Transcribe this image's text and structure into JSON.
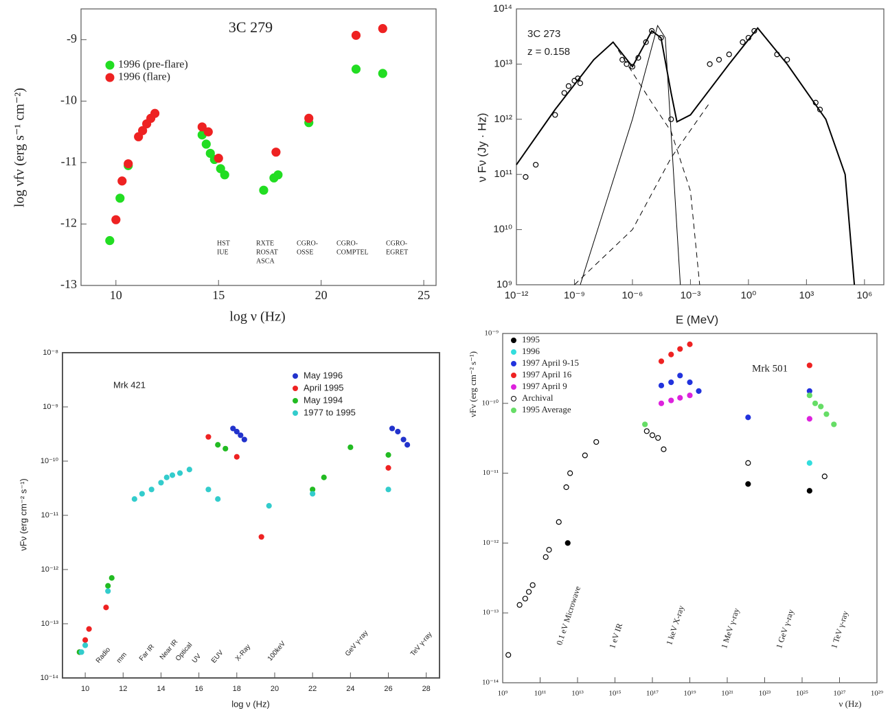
{
  "chart_data": [
    {
      "type": "scatter",
      "title": "3C 279",
      "xlabel": "log ν (Hz)",
      "ylabel": "log νfν (erg s⁻¹ cm⁻²)",
      "xlim": [
        8.3,
        25.6
      ],
      "xticks": [
        10,
        15,
        20,
        25
      ],
      "ylim": [
        -13,
        -8.5
      ],
      "yticks": [
        -13,
        -12,
        -11,
        -10,
        -9
      ],
      "xlog": false,
      "ylog": false,
      "legend": "upper left",
      "annotations": [
        [
          "HST",
          "IUE"
        ],
        [
          "RXTE",
          "ROSAT",
          "ASCA"
        ],
        [
          "CGRO-",
          "OSSE"
        ],
        [
          "CGRO-",
          "COMPTEL"
        ],
        [
          "CGRO-",
          "EGRET"
        ]
      ],
      "series": [
        {
          "name": "1996 (pre-flare)",
          "color": "#22dd22",
          "marker": "filled",
          "x": [
            9.7,
            10.2,
            10.6,
            14.2,
            14.4,
            14.6,
            14.8,
            15.1,
            15.3,
            17.2,
            17.7,
            17.9,
            19.4,
            21.7,
            23.0
          ],
          "values": [
            -12.27,
            -11.58,
            -11.05,
            -10.55,
            -10.7,
            -10.85,
            -10.95,
            -11.1,
            -11.2,
            -11.45,
            -11.25,
            -11.2,
            -10.35,
            -9.48,
            -9.55
          ]
        },
        {
          "name": "1996 (flare)",
          "color": "#ee2222",
          "marker": "filled",
          "x": [
            10.0,
            10.3,
            10.6,
            11.1,
            11.3,
            11.5,
            11.7,
            11.9,
            14.2,
            14.5,
            15.0,
            17.8,
            19.4,
            21.7,
            23.0
          ],
          "values": [
            -11.93,
            -11.3,
            -11.02,
            -10.58,
            -10.48,
            -10.37,
            -10.28,
            -10.2,
            -10.42,
            -10.5,
            -10.93,
            -10.83,
            -10.28,
            -8.93,
            -8.82
          ]
        }
      ]
    },
    {
      "type": "scatter",
      "title": "3C 273",
      "subtitle": "z = 0.158",
      "title_color": "#e0407a",
      "xlabel": "E (MeV)",
      "ylabel": "ν Fν (Jy · Hz)",
      "xlim": [
        1e-12,
        10000000.0
      ],
      "xlog": true,
      "ylog": true,
      "xticks": [
        {
          "value": 1e-12,
          "label": "10⁻¹²"
        },
        {
          "value": 1e-09,
          "label": "10⁻⁹"
        },
        {
          "value": 1e-06,
          "label": "10⁻⁶"
        },
        {
          "value": 0.001,
          "label": "10⁻³"
        },
        {
          "value": 1,
          "label": "10⁰"
        },
        {
          "value": 1000,
          "label": "10³"
        },
        {
          "value": 1000000,
          "label": "10⁶"
        }
      ],
      "ylim": [
        1000000000.0,
        100000000000000.0
      ],
      "yticks": [
        {
          "value": 1000000000.0,
          "label": "10⁹"
        },
        {
          "value": 10000000000.0,
          "label": "10¹⁰"
        },
        {
          "value": 100000000000.0,
          "label": "10¹¹"
        },
        {
          "value": 1000000000000.0,
          "label": "10¹²"
        },
        {
          "value": 10000000000000.0,
          "label": "10¹³"
        },
        {
          "value": 100000000000000.0,
          "label": "10¹⁴"
        }
      ],
      "series": [
        {
          "color": "#000000",
          "marker": "open",
          "x": [
            3e-12,
            1e-11,
            1e-10,
            3e-10,
            5e-10,
            1e-09,
            1.5e-09,
            2e-09,
            3e-07,
            5e-07,
            1e-06,
            2e-06,
            5e-06,
            1e-05,
            3e-05,
            0.0001,
            0.01,
            0.03,
            0.1,
            0.5,
            1,
            2,
            30,
            100,
            3000,
            5000
          ],
          "values": [
            90000000000.0,
            150000000000.0,
            1200000000000.0,
            3000000000000.0,
            4000000000000.0,
            5000000000000.0,
            5500000000000.0,
            4500000000000.0,
            12000000000000.0,
            10000000000000.0,
            9000000000000.0,
            13000000000000.0,
            25000000000000.0,
            40000000000000.0,
            30000000000000.0,
            1000000000000.0,
            10000000000000.0,
            12000000000000.0,
            15000000000000.0,
            25000000000000.0,
            30000000000000.0,
            40000000000000.0,
            15000000000000.0,
            12000000000000.0,
            2000000000000.0,
            1500000000000.0
          ]
        },
        {
          "color": "#000000",
          "line": true,
          "width": 2,
          "x": [
            1e-12,
            1e-10,
            1e-08,
            1e-07,
            1e-06,
            1e-05,
            3e-05,
            0.0001,
            0.0002,
            0.001,
            0.1,
            3,
            100,
            10000,
            100000,
            300000
          ],
          "values": [
            150000000000.0,
            1500000000000.0,
            12000000000000.0,
            25000000000000.0,
            9000000000000.0,
            40000000000000.0,
            30000000000000.0,
            3000000000000.0,
            900000000000.0,
            1200000000000.0,
            10000000000000.0,
            45000000000000.0,
            10000000000000.0,
            1000000000000.0,
            100000000000.0,
            1000000000.0
          ]
        },
        {
          "color": "#000000",
          "line": true,
          "width": 1,
          "x": [
            2e-09,
            1e-06,
            2e-05,
            5e-05,
            0.0003
          ],
          "values": [
            1000000000.0,
            1000000000000.0,
            50000000000000.0,
            30000000000000.0,
            1000000000.0
          ]
        },
        {
          "color": "#000000",
          "line": true,
          "dash": true,
          "width": 1,
          "x": [
            1e-07,
            1e-05,
            0.0001,
            0.001,
            0.003
          ],
          "values": [
            25000000000000.0,
            2000000000000.0,
            600000000000.0,
            50000000000.0,
            1000000000.0
          ]
        },
        {
          "color": "#000000",
          "line": true,
          "dash": true,
          "width": 1,
          "x": [
            1e-09,
            1e-06,
            0.0001,
            0.01
          ],
          "values": [
            1000000000.0,
            10000000000.0,
            200000000000.0,
            2000000000000.0
          ]
        }
      ]
    },
    {
      "type": "scatter",
      "title": "Mrk 421",
      "xlabel": "log ν (Hz)",
      "ylabel": "νFν (erg cm⁻² s⁻¹)",
      "xlim": [
        8.8,
        28.7
      ],
      "xticks": [
        10,
        12,
        14,
        16,
        18,
        20,
        22,
        24,
        26,
        28
      ],
      "xlog": false,
      "ylog": true,
      "ylim": [
        1e-14,
        1e-08
      ],
      "yticks": [
        {
          "value": 1e-14,
          "label": "10⁻¹⁴"
        },
        {
          "value": 1e-13,
          "label": "10⁻¹³"
        },
        {
          "value": 1e-12,
          "label": "10⁻¹²"
        },
        {
          "value": 1e-11,
          "label": "10⁻¹¹"
        },
        {
          "value": 1e-10,
          "label": "10⁻¹⁰"
        },
        {
          "value": 1e-09,
          "label": "10⁻⁹"
        },
        {
          "value": 1e-08,
          "label": "10⁻⁸"
        }
      ],
      "legend": "upper right",
      "annotations": [
        "Radio",
        "mm",
        "Far IR",
        "Near IR",
        "Optical",
        "UV",
        "EUV",
        "X-Ray",
        "100keV",
        "GeV γ-ray",
        "TeV γ-ray"
      ],
      "series": [
        {
          "name": "May 1996",
          "color": "#2233cc",
          "marker": "filled",
          "x": [
            17.8,
            18.0,
            18.2,
            18.4,
            26.2,
            26.5,
            26.8,
            27.0
          ],
          "values": [
            4e-10,
            3.5e-10,
            3e-10,
            2.5e-10,
            4e-10,
            3.5e-10,
            2.5e-10,
            2e-10
          ]
        },
        {
          "name": "April 1995",
          "color": "#ee2222",
          "marker": "filled",
          "x": [
            9.7,
            10.0,
            10.2,
            11.1,
            16.5,
            18.0,
            19.3,
            26.0
          ],
          "values": [
            3e-14,
            5e-14,
            8e-14,
            2e-13,
            2.8e-10,
            1.2e-10,
            4e-12,
            7.5e-11
          ]
        },
        {
          "name": "May 1994",
          "color": "#22bb22",
          "marker": "filled",
          "x": [
            9.7,
            11.2,
            11.4,
            17.0,
            17.4,
            22.0,
            22.6,
            24.0,
            26.0
          ],
          "values": [
            3e-14,
            5e-13,
            7e-13,
            2e-10,
            1.7e-10,
            3e-11,
            5e-11,
            1.8e-10,
            1.3e-10
          ]
        },
        {
          "name": "1977 to 1995",
          "color": "#33cccc",
          "marker": "filled",
          "x": [
            9.8,
            10.0,
            11.2,
            12.6,
            13.0,
            13.5,
            14.0,
            14.3,
            14.6,
            15.0,
            15.5,
            16.5,
            17.0,
            19.7,
            22.0,
            26.0
          ],
          "values": [
            3e-14,
            4e-14,
            4e-13,
            2e-11,
            2.5e-11,
            3e-11,
            4e-11,
            5e-11,
            5.5e-11,
            6e-11,
            7e-11,
            3e-11,
            2e-11,
            1.5e-11,
            2.5e-11,
            3e-11
          ]
        }
      ]
    },
    {
      "type": "scatter",
      "title": "Mrk 501",
      "xlabel": "ν (Hz)",
      "ylabel": "νFν (erg cm⁻² s⁻¹)",
      "xlim": [
        1000000000.0,
        1e+29
      ],
      "xlog": true,
      "ylog": true,
      "xticks": [
        {
          "value": 1000000000.0,
          "label": "10⁹"
        },
        {
          "value": 100000000000.0,
          "label": "10¹¹"
        },
        {
          "value": 10000000000000.0,
          "label": "10¹³"
        },
        {
          "value": 1000000000000000.0,
          "label": "10¹⁵"
        },
        {
          "value": 1e+17,
          "label": "10¹⁷"
        },
        {
          "value": 1e+19,
          "label": "10¹⁹"
        },
        {
          "value": 1e+21,
          "label": "10²¹"
        },
        {
          "value": 1e+23,
          "label": "10²³"
        },
        {
          "value": 1e+25,
          "label": "10²⁵"
        },
        {
          "value": 1e+27,
          "label": "10²⁷"
        },
        {
          "value": 1e+29,
          "label": "10²⁹"
        }
      ],
      "ylim": [
        1e-14,
        1e-09
      ],
      "yticks": [
        {
          "value": 1e-14,
          "label": "10⁻¹⁴"
        },
        {
          "value": 1e-13,
          "label": "10⁻¹³"
        },
        {
          "value": 1e-12,
          "label": "10⁻¹²"
        },
        {
          "value": 1e-11,
          "label": "10⁻¹¹"
        },
        {
          "value": 1e-10,
          "label": "10⁻¹⁰"
        },
        {
          "value": 1e-09,
          "label": "10⁻⁹"
        }
      ],
      "legend": "upper left",
      "legend_text_color": "series",
      "annotation_color": "#dd22dd",
      "annotations": [
        "0.1 eV Microwave",
        "1 eV IR",
        "1 keV X-ray",
        "1 MeV γ-ray",
        "1 GeV γ-ray",
        "1 TeV γ-ray"
      ],
      "series": [
        {
          "name": "1995",
          "color": "#000000",
          "marker": "filled",
          "x": [
            3000000000000.0,
            1.3e+22,
            2.5e+25
          ],
          "values": [
            1e-12,
            7e-12,
            5.6e-12
          ]
        },
        {
          "name": "1996",
          "color": "#33dddd",
          "marker": "filled",
          "x": [
            2.5e+25
          ],
          "values": [
            1.4e-11
          ]
        },
        {
          "name": "1997 April 9-15",
          "color": "#2233dd",
          "marker": "filled",
          "x": [
            3e+17,
            1e+18,
            3e+18,
            1e+19,
            3e+19,
            1.3e+22,
            2.5e+25
          ],
          "values": [
            1.8e-10,
            2e-10,
            2.5e-10,
            2e-10,
            1.5e-10,
            6.3e-11,
            1.5e-10
          ]
        },
        {
          "name": "1997 April 16",
          "color": "#ee2222",
          "marker": "filled",
          "x": [
            3e+17,
            1e+18,
            3e+18,
            1e+19,
            2.5e+25
          ],
          "values": [
            4e-10,
            5e-10,
            6e-10,
            7e-10,
            3.5e-10
          ]
        },
        {
          "name": "1997 April 9",
          "color": "#dd22dd",
          "marker": "filled",
          "x": [
            3e+17,
            1e+18,
            3e+18,
            1e+19,
            2.5e+25
          ],
          "values": [
            1e-10,
            1.1e-10,
            1.2e-10,
            1.3e-10,
            6e-11
          ]
        },
        {
          "name": "Archival",
          "color": "#000000",
          "marker": "open",
          "x": [
            2000000000.0,
            8000000000.0,
            16000000000.0,
            25000000000.0,
            40000000000.0,
            200000000000.0,
            300000000000.0,
            1000000000000.0,
            2500000000000.0,
            4000000000000.0,
            25000000000000.0,
            100000000000000.0,
            5e+16,
            1e+17,
            2e+17,
            4e+17,
            1.3e+22,
            1.6e+26
          ],
          "values": [
            2.5e-14,
            1.3e-13,
            1.6e-13,
            2e-13,
            2.5e-13,
            6.3e-13,
            8e-13,
            2e-12,
            6.3e-12,
            1e-11,
            1.8e-11,
            2.8e-11,
            4e-11,
            3.5e-11,
            3.2e-11,
            2.2e-11,
            1.4e-11,
            9e-12
          ]
        },
        {
          "name": "1995 Average",
          "color": "#66dd66",
          "marker": "filled",
          "x": [
            4e+16,
            2.5e+25,
            5e+25,
            1e+26,
            2e+26,
            5e+26
          ],
          "values": [
            5e-11,
            1.3e-10,
            1e-10,
            9e-11,
            7e-11,
            5e-11
          ]
        }
      ]
    }
  ]
}
